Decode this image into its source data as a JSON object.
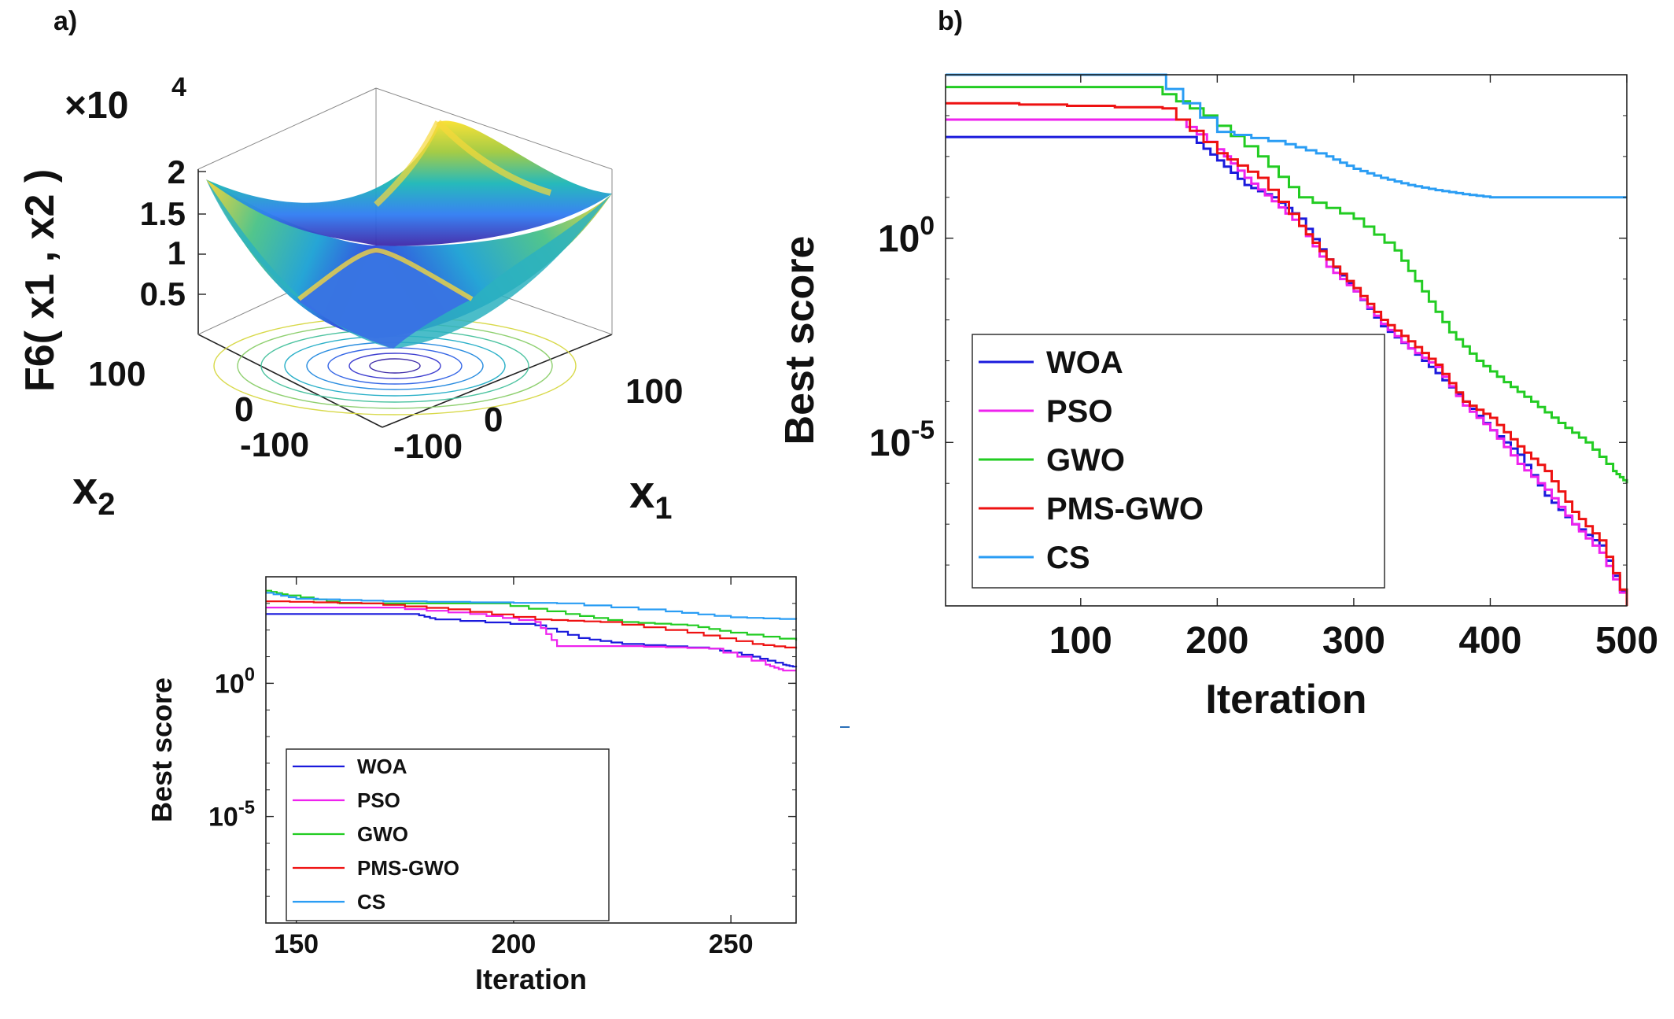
{
  "panels": {
    "a": "a)",
    "b": "b)"
  },
  "colors": {
    "WOA": "#1a1adc",
    "PSO": "#ee22ee",
    "GWO": "#22cc22",
    "PMS-GWO": "#ee1111",
    "CS": "#2a9df4"
  },
  "chart_data": [
    {
      "type": "surface",
      "title": "",
      "zlabel": "F6( x1 , x2 )",
      "z_exponent_label": "×10",
      "z_exponent": "4",
      "zticks": [
        "2",
        "1.5",
        "1",
        "0.5"
      ],
      "x2label": "x2",
      "x2ticks": [
        "100",
        "0",
        "-100"
      ],
      "x1label": "x1",
      "x1ticks": [
        "100",
        "0",
        "-100"
      ],
      "x_range": [
        -100,
        100
      ],
      "z_range": [
        0,
        20000
      ],
      "colormap": "parula"
    },
    {
      "type": "line",
      "xlabel": "Iteration",
      "ylabel": "Best score",
      "yscale": "log",
      "xlim": [
        143,
        265
      ],
      "ylim": [
        1e-09,
        10000
      ],
      "xticks": [
        {
          "value": 150,
          "label": "150"
        },
        {
          "value": 200,
          "label": "200"
        },
        {
          "value": 250,
          "label": "250"
        }
      ],
      "yticks": [
        {
          "value": 1,
          "label": "10",
          "exp": "0"
        },
        {
          "value": 1e-05,
          "label": "10",
          "exp": "-5"
        }
      ],
      "legend_position": "lower-left",
      "grid": false,
      "series": [
        {
          "name": "WOA",
          "x": [
            143,
            177,
            182,
            205,
            215,
            225,
            245,
            255,
            262,
            265
          ],
          "y": [
            400,
            400,
            250,
            150,
            50,
            30,
            20,
            10,
            5,
            4
          ]
        },
        {
          "name": "PSO",
          "x": [
            143,
            170,
            190,
            205,
            210,
            225,
            245,
            258,
            262,
            265
          ],
          "y": [
            700,
            700,
            400,
            200,
            25,
            25,
            20,
            5,
            3,
            3
          ]
        },
        {
          "name": "GWO",
          "x": [
            143,
            148,
            160,
            195,
            212,
            225,
            240,
            250,
            265
          ],
          "y": [
            3000,
            2000,
            1000,
            1000,
            400,
            200,
            150,
            80,
            40
          ]
        },
        {
          "name": "PMS-GWO",
          "x": [
            143,
            165,
            185,
            205,
            220,
            240,
            255,
            265
          ],
          "y": [
            1200,
            1000,
            600,
            250,
            200,
            80,
            30,
            20
          ]
        },
        {
          "name": "CS",
          "x": [
            143,
            150,
            170,
            210,
            235,
            250,
            265
          ],
          "y": [
            2500,
            1500,
            1200,
            1000,
            500,
            300,
            250
          ]
        }
      ]
    },
    {
      "type": "line",
      "xlabel": "Iteration",
      "ylabel": "Best score",
      "yscale": "log",
      "xlim": [
        1,
        500
      ],
      "ylim": [
        1e-09,
        10000
      ],
      "xticks": [
        {
          "value": 100,
          "label": "100"
        },
        {
          "value": 200,
          "label": "200"
        },
        {
          "value": 300,
          "label": "300"
        },
        {
          "value": 400,
          "label": "400"
        },
        {
          "value": 500,
          "label": "500"
        }
      ],
      "yticks": [
        {
          "value": 1,
          "label": "10",
          "exp": "0"
        },
        {
          "value": 1e-05,
          "label": "10",
          "exp": "-5"
        }
      ],
      "legend_position": "lower-left",
      "grid": false,
      "series": [
        {
          "name": "WOA",
          "x": [
            1,
            180,
            200,
            220,
            240,
            260,
            280,
            300,
            320,
            340,
            360,
            380,
            400,
            420,
            440,
            460,
            480,
            500
          ],
          "y": [
            300,
            300,
            80,
            20,
            10,
            3,
            0.3,
            0.05,
            0.007,
            0.002,
            0.0005,
            0.0001,
            2e-05,
            5e-06,
            5e-07,
            1e-07,
            3e-08,
            1e-09
          ]
        },
        {
          "name": "PSO",
          "x": [
            1,
            170,
            200,
            220,
            240,
            260,
            280,
            300,
            320,
            340,
            360,
            380,
            400,
            420,
            440,
            460,
            480,
            500
          ],
          "y": [
            800,
            800,
            150,
            30,
            8,
            2,
            0.2,
            0.05,
            0.008,
            0.002,
            0.0007,
            8e-05,
            2e-05,
            3e-06,
            7e-07,
            1e-07,
            2e-08,
            1e-09
          ]
        },
        {
          "name": "GWO",
          "x": [
            1,
            150,
            190,
            230,
            260,
            300,
            330,
            350,
            370,
            390,
            410,
            430,
            450,
            470,
            490,
            500
          ],
          "y": [
            5000,
            5000,
            1000,
            100,
            10,
            3,
            0.5,
            0.05,
            0.005,
            0.001,
            0.0003,
            0.0001,
            3e-05,
            1e-05,
            2e-06,
            1e-06
          ]
        },
        {
          "name": "PMS-GWO",
          "x": [
            1,
            20,
            160,
            200,
            230,
            260,
            280,
            300,
            320,
            340,
            360,
            380,
            400,
            420,
            440,
            460,
            480,
            500
          ],
          "y": [
            2000,
            2000,
            1500,
            120,
            30,
            2,
            0.3,
            0.06,
            0.01,
            0.003,
            0.0008,
            0.0001,
            4e-05,
            8e-06,
            2e-06,
            2e-07,
            4e-08,
            1e-09
          ]
        },
        {
          "name": "CS",
          "x": [
            1,
            150,
            200,
            250,
            280,
            300,
            320,
            340,
            360,
            380,
            400,
            450,
            500
          ],
          "y": [
            10000,
            10000,
            400,
            200,
            100,
            50,
            30,
            20,
            15,
            12,
            10,
            10,
            10
          ]
        }
      ]
    }
  ]
}
